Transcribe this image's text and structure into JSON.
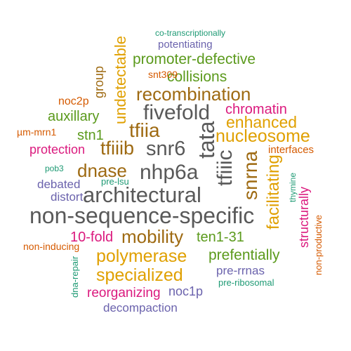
{
  "words": [
    {
      "id": "non-sequence-specific",
      "text": "non-sequence-specific",
      "color": "#595959"
    },
    {
      "id": "architectural",
      "text": "architectural",
      "color": "#595959"
    },
    {
      "id": "nhp6a",
      "text": "nhp6a",
      "color": "#595959"
    },
    {
      "id": "tata",
      "text": "tata",
      "color": "#595959"
    },
    {
      "id": "tfiiic",
      "text": "tfiiic",
      "color": "#595959"
    },
    {
      "id": "snr6",
      "text": "snr6",
      "color": "#595959"
    },
    {
      "id": "fivefold",
      "text": "fivefold",
      "color": "#595959"
    },
    {
      "id": "snrna",
      "text": "snrna",
      "color": "#9e6a12"
    },
    {
      "id": "recombination",
      "text": "recombination",
      "color": "#9e6a12"
    },
    {
      "id": "mobility",
      "text": "mobility",
      "color": "#9e6a12"
    },
    {
      "id": "dnase",
      "text": "dnase",
      "color": "#9e6a12"
    },
    {
      "id": "tfiia",
      "text": "tfiia",
      "color": "#9e6a12"
    },
    {
      "id": "tfiiib",
      "text": "tfiiib",
      "color": "#9e6a12"
    },
    {
      "id": "nucleosome",
      "text": "nucleosome",
      "color": "#e0a000"
    },
    {
      "id": "enhanced",
      "text": "enhanced",
      "color": "#e0a000"
    },
    {
      "id": "polymerase",
      "text": "polymerase",
      "color": "#e0a000"
    },
    {
      "id": "specialized",
      "text": "specialized",
      "color": "#e0a000"
    },
    {
      "id": "undetectable",
      "text": "undetectable",
      "color": "#e0a000"
    },
    {
      "id": "facilitating",
      "text": "facilitating",
      "color": "#e0a000"
    },
    {
      "id": "promoter-defective",
      "text": "promoter-defective",
      "color": "#5b9a1c"
    },
    {
      "id": "collisions",
      "text": "collisions",
      "color": "#5b9a1c"
    },
    {
      "id": "auxillary",
      "text": "auxillary",
      "color": "#5b9a1c"
    },
    {
      "id": "stn1",
      "text": "stn1",
      "color": "#5b9a1c"
    },
    {
      "id": "ten1-31",
      "text": "ten1-31",
      "color": "#5b9a1c"
    },
    {
      "id": "prefentially",
      "text": "prefentially",
      "color": "#5b9a1c"
    },
    {
      "id": "chromatin",
      "text": "chromatin",
      "color": "#db1a7e"
    },
    {
      "id": "protection",
      "text": "protection",
      "color": "#db1a7e"
    },
    {
      "id": "10-fold",
      "text": "10-fold",
      "color": "#db1a7e"
    },
    {
      "id": "reorganizing",
      "text": "reorganizing",
      "color": "#db1a7e"
    },
    {
      "id": "structurally",
      "text": "structurally",
      "color": "#db1a7e"
    },
    {
      "id": "potentiating",
      "text": "potentiating",
      "color": "#6b63ad"
    },
    {
      "id": "debated",
      "text": "debated",
      "color": "#6b63ad"
    },
    {
      "id": "distort",
      "text": "distort",
      "color": "#6b63ad"
    },
    {
      "id": "pre-rrnas",
      "text": "pre-rrnas",
      "color": "#6b63ad"
    },
    {
      "id": "noc1p",
      "text": "noc1p",
      "color": "#6b63ad"
    },
    {
      "id": "decompaction",
      "text": "decompaction",
      "color": "#6b63ad"
    },
    {
      "id": "co-transcriptionally",
      "text": "co-transcriptionally",
      "color": "#1e9a74"
    },
    {
      "id": "pob3",
      "text": "pob3",
      "color": "#1e9a74"
    },
    {
      "id": "pre-lsu",
      "text": "pre-lsu",
      "color": "#1e9a74"
    },
    {
      "id": "thymine",
      "text": "thymine",
      "color": "#1e9a74"
    },
    {
      "id": "dna-repair",
      "text": "dna-repair",
      "color": "#1e9a74"
    },
    {
      "id": "pre-ribosomal",
      "text": "pre-ribosomal",
      "color": "#1e9a74"
    },
    {
      "id": "snt309",
      "text": "snt309",
      "color": "#d55a00"
    },
    {
      "id": "noc2p",
      "text": "noc2p",
      "color": "#d55a00"
    },
    {
      "id": "um-mrn1",
      "text": "µm-mrn1",
      "color": "#d55a00"
    },
    {
      "id": "interfaces",
      "text": "interfaces",
      "color": "#d55a00"
    },
    {
      "id": "non-inducing",
      "text": "non-inducing",
      "color": "#d55a00"
    },
    {
      "id": "non-productive",
      "text": "non-productive",
      "color": "#d55a00"
    },
    {
      "id": "group",
      "text": "group",
      "color": "#9e6a12"
    }
  ]
}
